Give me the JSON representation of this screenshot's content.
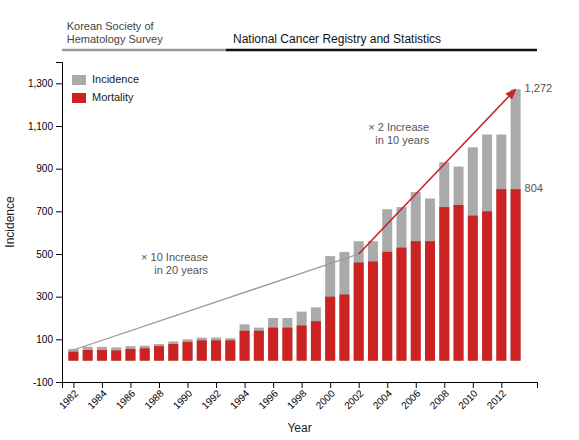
{
  "chart_data": {
    "type": "bar",
    "headers": [
      "Korean Society of\nHematology Survey",
      "National Cancer Registry and Statistics"
    ],
    "xlabel": "Year",
    "ylabel": "Incidence",
    "x": [
      1982,
      1983,
      1984,
      1985,
      1986,
      1987,
      1988,
      1989,
      1990,
      1991,
      1992,
      1993,
      1994,
      1995,
      1996,
      1997,
      1998,
      1999,
      2000,
      2001,
      2002,
      2003,
      2004,
      2005,
      2006,
      2007,
      2008,
      2009,
      2010,
      2011,
      2012,
      2013
    ],
    "xlim": [
      1981.2,
      2014.5
    ],
    "xticks": [
      1982,
      1984,
      1986,
      1988,
      1990,
      1992,
      1994,
      1996,
      1998,
      2000,
      2002,
      2004,
      2006,
      2008,
      2010,
      2012
    ],
    "ylim": [
      -100,
      1400
    ],
    "yticks": [
      -100,
      100,
      300,
      500,
      700,
      900,
      {
        "value": 1100,
        "label": "1,100"
      },
      {
        "value": 1300,
        "label": "1,300"
      }
    ],
    "legend": "upper left",
    "series": [
      {
        "name": "Incidence",
        "color": "#aaaaaa",
        "values": [
          55,
          65,
          65,
          62,
          68,
          70,
          78,
          90,
          100,
          108,
          108,
          105,
          170,
          155,
          200,
          200,
          230,
          250,
          490,
          510,
          560,
          560,
          710,
          720,
          790,
          760,
          930,
          910,
          1000,
          1060,
          1060,
          1272
        ],
        "value_labels": [
          null,
          null,
          null,
          null,
          null,
          null,
          null,
          null,
          null,
          null,
          null,
          null,
          null,
          null,
          null,
          null,
          null,
          null,
          null,
          null,
          null,
          null,
          null,
          null,
          null,
          null,
          null,
          null,
          null,
          null,
          null,
          "1,272"
        ]
      },
      {
        "name": "Mortality",
        "color": "#cc2222",
        "values": [
          42,
          50,
          50,
          48,
          55,
          58,
          68,
          78,
          88,
          95,
          95,
          95,
          140,
          140,
          155,
          155,
          165,
          185,
          300,
          310,
          460,
          465,
          510,
          530,
          560,
          560,
          720,
          730,
          680,
          700,
          804,
          804
        ],
        "value_labels": [
          null,
          null,
          null,
          null,
          null,
          null,
          null,
          null,
          null,
          null,
          null,
          null,
          null,
          null,
          null,
          null,
          null,
          null,
          null,
          null,
          null,
          null,
          null,
          null,
          null,
          null,
          null,
          null,
          null,
          null,
          null,
          "804"
        ]
      }
    ],
    "guides": [
      {
        "x": [
          1982,
          2002
        ],
        "y": [
          50,
          500
        ],
        "color": "#999999"
      },
      {
        "x": [
          2002,
          2013
        ],
        "y": [
          500,
          1272
        ],
        "color": "#cc2222",
        "marker": "arrow"
      }
    ],
    "annotations": [
      "× 10 Increase\nin 20 years",
      "× 2 Increase\nin 10 years"
    ]
  }
}
